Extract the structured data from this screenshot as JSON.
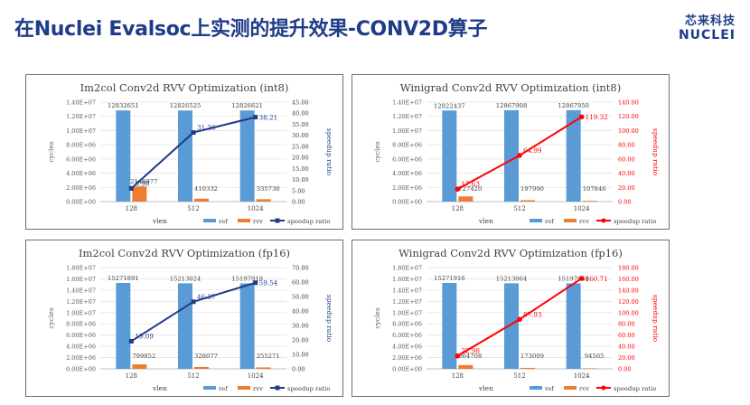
{
  "page": {
    "title": "在Nuclei Evalsoc上实测的提升效果-CONV2D算子",
    "logo_cn": "芯来科技",
    "logo_en": "NUCLEI"
  },
  "colors": {
    "ref": "#5b9bd5",
    "rvv": "#ed7d31",
    "navy": "#1f3c88",
    "red": "#ff0000"
  },
  "chart_data": [
    {
      "type": "bar",
      "title": "Im2col Conv2d RVV Optimization (int8)",
      "xlabel": "vlen",
      "ylabel": "cycles",
      "y2label": "speedup ratio",
      "categories": [
        "128",
        "512",
        "1024"
      ],
      "ylim": [
        0,
        14000000
      ],
      "yticks": [
        "0.00E+00",
        "2.00E+06",
        "4.00E+06",
        "6.00E+06",
        "8.00E+06",
        "1.00E+07",
        "1.20E+07",
        "1.40E+07"
      ],
      "y2lim": [
        0,
        45
      ],
      "y2ticks": [
        "0.00",
        "5.00",
        "10.00",
        "15.00",
        "20.00",
        "25.00",
        "30.00",
        "35.00",
        "40.00",
        "45.00"
      ],
      "line_color": "#1f3c88",
      "line_marker": "square",
      "series": [
        {
          "name": "ref",
          "values": [
            12832651,
            12826525,
            12826621
          ],
          "labels": [
            "12832651",
            "12826525",
            "12826621"
          ]
        },
        {
          "name": "rvv",
          "values": [
            2146977,
            410332,
            335730
          ],
          "labels": [
            "2146977",
            "410332",
            "335730"
          ]
        },
        {
          "name": "speedup ratio",
          "values": [
            5.98,
            31.26,
            38.21
          ],
          "labels": [
            "5.98",
            "31.26",
            "38.21"
          ],
          "axis": "secondary"
        }
      ],
      "legend": [
        "ref",
        "rvv",
        "speedup ratio"
      ]
    },
    {
      "type": "bar",
      "title": "Winigrad Conv2d RVV Optimization (int8)",
      "xlabel": "vlen",
      "ylabel": "cycles",
      "y2label": "speedup ratio",
      "categories": [
        "128",
        "512",
        "1024"
      ],
      "ylim": [
        0,
        14000000
      ],
      "yticks": [
        "0.00E+00",
        "2.00E+06",
        "4.00E+06",
        "6.00E+06",
        "8.00E+06",
        "1.00E+07",
        "1.20E+07",
        "1.40E+07"
      ],
      "y2lim": [
        0,
        140
      ],
      "y2ticks": [
        "0.00",
        "20.00",
        "40.00",
        "60.00",
        "80.00",
        "100.00",
        "120.00",
        "140.00"
      ],
      "line_color": "#ff0000",
      "line_marker": "circle",
      "series": [
        {
          "name": "ref",
          "values": [
            12822437,
            12867908,
            12867950
          ],
          "labels": [
            "12822437",
            "12867908",
            "12867950"
          ]
        },
        {
          "name": "rvv",
          "values": [
            727420,
            197990,
            107846
          ],
          "labels": [
            "727420",
            "197990",
            "107846"
          ]
        },
        {
          "name": "speedup ratio",
          "values": [
            17.63,
            64.99,
            119.32
          ],
          "labels": [
            "17.63",
            "64.99",
            "119.32"
          ],
          "axis": "secondary"
        }
      ],
      "legend": [
        "ref",
        "rvv",
        "speedup ratio"
      ]
    },
    {
      "type": "bar",
      "title": "Im2col Conv2d RVV Optimization (fp16)",
      "xlabel": "vlen",
      "ylabel": "cycles",
      "y2label": "speedup ratio",
      "categories": [
        "128",
        "512",
        "1024"
      ],
      "ylim": [
        0,
        18000000
      ],
      "yticks": [
        "0.00E+00",
        "2.00E+06",
        "4.00E+06",
        "6.00E+06",
        "8.00E+06",
        "1.00E+07",
        "1.20E+07",
        "1.40E+07",
        "1.60E+07",
        "1.80E+07"
      ],
      "y2lim": [
        0,
        70
      ],
      "y2ticks": [
        "0.00",
        "10.00",
        "20.00",
        "30.00",
        "40.00",
        "50.00",
        "60.00",
        "70.00"
      ],
      "line_color": "#1f3c88",
      "line_marker": "square",
      "series": [
        {
          "name": "ref",
          "values": [
            15271891,
            15213024,
            15197919
          ],
          "labels": [
            "15271891",
            "15213024",
            "15197919"
          ]
        },
        {
          "name": "rvv",
          "values": [
            799852,
            328077,
            255271
          ],
          "labels": [
            "799852",
            "328077",
            "255271"
          ]
        },
        {
          "name": "speedup ratio",
          "values": [
            19.09,
            46.37,
            59.54
          ],
          "labels": [
            "19.09",
            "46.37",
            "59.54"
          ],
          "axis": "secondary"
        }
      ],
      "legend": [
        "ref",
        "rvv",
        "speedup ratio"
      ]
    },
    {
      "type": "bar",
      "title": "Winigrad Conv2d RVV Optimization (fp16)",
      "xlabel": "vlen",
      "ylabel": "cycles",
      "y2label": "speedup ratio",
      "categories": [
        "128",
        "512",
        "1024"
      ],
      "ylim": [
        0,
        18000000
      ],
      "yticks": [
        "0.00E+00",
        "2.00E+06",
        "4.00E+06",
        "6.00E+06",
        "8.00E+06",
        "1.00E+07",
        "1.20E+07",
        "1.40E+07",
        "1.60E+07",
        "1.80E+07"
      ],
      "y2lim": [
        0,
        180
      ],
      "y2ticks": [
        "0.00",
        "20.00",
        "40.00",
        "60.00",
        "80.00",
        "100.00",
        "120.00",
        "140.00",
        "160.00",
        "180.00"
      ],
      "line_color": "#ff0000",
      "line_marker": "circle",
      "series": [
        {
          "name": "ref",
          "values": [
            15271916,
            15213064,
            15197958
          ],
          "labels": [
            "15271916",
            "15213064",
            "15197958"
          ]
        },
        {
          "name": "rvv",
          "values": [
            664708,
            173009,
            94565
          ],
          "labels": [
            "664708",
            "173009",
            "94565"
          ]
        },
        {
          "name": "speedup ratio",
          "values": [
            22.98,
            87.93,
            160.71
          ],
          "labels": [
            "22.98",
            "87.93",
            "160.71"
          ],
          "axis": "secondary"
        }
      ],
      "legend": [
        "ref",
        "rvv",
        "speedup ratio"
      ]
    }
  ]
}
